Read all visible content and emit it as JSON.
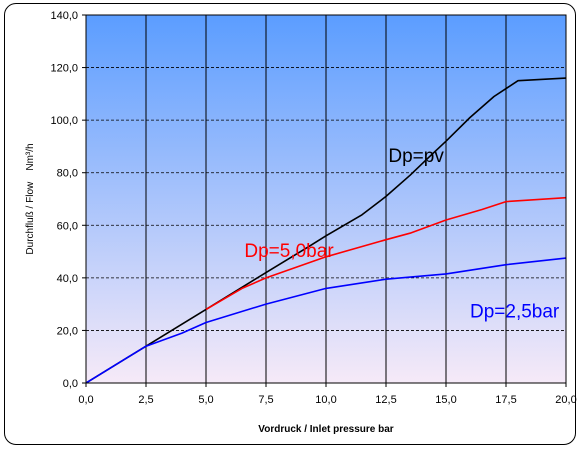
{
  "chart_data": {
    "type": "line",
    "xlabel": "Vordruck / Inlet pressure bar",
    "ylabel": "Durchfluß / Flow    Nm³/h",
    "xlim": [
      0,
      20
    ],
    "ylim": [
      0,
      140
    ],
    "x_ticks": [
      "0,0",
      "2,5",
      "5,0",
      "7,5",
      "10,0",
      "12,5",
      "15,0",
      "17,5",
      "20,0"
    ],
    "y_ticks": [
      "0,0",
      "20,0",
      "40,0",
      "60,0",
      "80,0",
      "100,0",
      "120,0",
      "140,0"
    ],
    "grid": true,
    "background_gradient": {
      "top": "#5b9dff",
      "bottom": "#f6eaf8"
    },
    "series": [
      {
        "name": "Dp=pv",
        "color": "#000000",
        "label_pos": [
          12.6,
          84
        ],
        "points": [
          [
            0,
            0
          ],
          [
            2.5,
            14
          ],
          [
            5,
            28
          ],
          [
            7.5,
            42
          ],
          [
            9.3,
            52
          ],
          [
            10,
            56
          ],
          [
            11.5,
            64
          ],
          [
            12.5,
            71
          ],
          [
            13.5,
            79
          ],
          [
            14.3,
            86
          ],
          [
            15,
            92
          ],
          [
            16,
            101
          ],
          [
            17,
            109
          ],
          [
            18,
            115
          ],
          [
            20,
            116
          ]
        ]
      },
      {
        "name": "Dp=5,0bar",
        "color": "#ff0000",
        "label_pos": [
          6.6,
          48
        ],
        "points": [
          [
            5,
            28
          ],
          [
            6.5,
            36
          ],
          [
            7.5,
            40
          ],
          [
            10,
            48
          ],
          [
            12.5,
            54.5
          ],
          [
            13.5,
            57
          ],
          [
            15,
            62
          ],
          [
            16.5,
            66
          ],
          [
            17.5,
            69
          ],
          [
            20,
            70.5
          ]
        ]
      },
      {
        "name": "Dp=2,5bar",
        "color": "#0000ff",
        "label_pos": [
          16.0,
          25
        ],
        "points": [
          [
            0,
            0
          ],
          [
            2.5,
            14
          ],
          [
            4,
            19
          ],
          [
            5,
            23
          ],
          [
            7.5,
            30
          ],
          [
            10,
            36
          ],
          [
            12.5,
            39.5
          ],
          [
            15,
            41.5
          ],
          [
            17.5,
            45
          ],
          [
            20,
            47.5
          ]
        ]
      }
    ]
  }
}
